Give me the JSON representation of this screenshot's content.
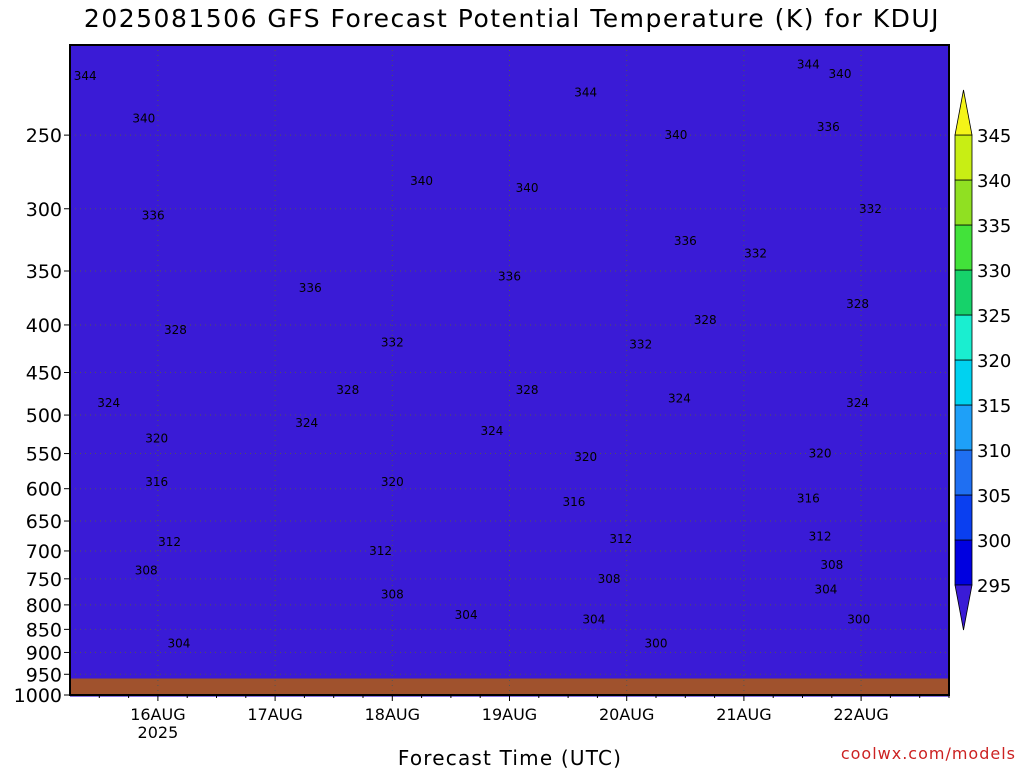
{
  "title": "2025081506 GFS Forecast Potential Temperature (K) for KDUJ",
  "credit": "coolwx.com/models",
  "chart_data": {
    "type": "heatmap",
    "title": "2025081506 GFS Forecast Potential Temperature (K) for KDUJ",
    "xlabel": "Forecast Time (UTC)",
    "ylabel": "",
    "x_ticks": [
      "16AUG",
      "17AUG",
      "18AUG",
      "19AUG",
      "20AUG",
      "21AUG",
      "22AUG"
    ],
    "x_tick_sublabel": {
      "16AUG": "2025"
    },
    "x_range_days": [
      15.25,
      22.75
    ],
    "y_ticks": [
      250,
      300,
      350,
      400,
      450,
      500,
      550,
      600,
      650,
      700,
      750,
      800,
      850,
      900,
      950,
      1000
    ],
    "y_range_hpa": [
      200,
      1000
    ],
    "y_scale": "log",
    "y_reversed": true,
    "ground_level_hpa": 960,
    "grid": "dotted",
    "colorbar": {
      "levels": [
        295,
        300,
        305,
        310,
        315,
        320,
        325,
        330,
        335,
        340,
        345
      ],
      "colors": [
        "#3a1bd6",
        "#0000e0",
        "#0a3ff0",
        "#1f6ff2",
        "#1ea0f8",
        "#00d2f0",
        "#1aeed0",
        "#16d26a",
        "#42e23a",
        "#90e022",
        "#c8ee14",
        "#f4f418"
      ],
      "extend": "both"
    },
    "contour_labels": [
      {
        "day": 15.38,
        "p": 216,
        "v": 344
      },
      {
        "day": 15.88,
        "p": 240,
        "v": 340
      },
      {
        "day": 15.96,
        "p": 305,
        "v": 336
      },
      {
        "day": 16.15,
        "p": 405,
        "v": 328
      },
      {
        "day": 15.58,
        "p": 485,
        "v": 324
      },
      {
        "day": 15.99,
        "p": 530,
        "v": 320
      },
      {
        "day": 15.99,
        "p": 590,
        "v": 316
      },
      {
        "day": 16.1,
        "p": 685,
        "v": 312
      },
      {
        "day": 15.9,
        "p": 735,
        "v": 308
      },
      {
        "day": 16.18,
        "p": 880,
        "v": 304
      },
      {
        "day": 18.25,
        "p": 280,
        "v": 340
      },
      {
        "day": 17.3,
        "p": 365,
        "v": 336
      },
      {
        "day": 18.0,
        "p": 418,
        "v": 332
      },
      {
        "day": 17.62,
        "p": 470,
        "v": 328
      },
      {
        "day": 17.27,
        "p": 510,
        "v": 324
      },
      {
        "day": 18.0,
        "p": 590,
        "v": 320
      },
      {
        "day": 17.9,
        "p": 700,
        "v": 312
      },
      {
        "day": 18.0,
        "p": 780,
        "v": 308
      },
      {
        "day": 18.63,
        "p": 820,
        "v": 304
      },
      {
        "day": 19.15,
        "p": 285,
        "v": 340
      },
      {
        "day": 19.0,
        "p": 355,
        "v": 336
      },
      {
        "day": 19.15,
        "p": 470,
        "v": 328
      },
      {
        "day": 18.85,
        "p": 520,
        "v": 324
      },
      {
        "day": 19.65,
        "p": 555,
        "v": 320
      },
      {
        "day": 19.55,
        "p": 620,
        "v": 316
      },
      {
        "day": 19.95,
        "p": 680,
        "v": 312
      },
      {
        "day": 19.85,
        "p": 750,
        "v": 308
      },
      {
        "day": 19.72,
        "p": 830,
        "v": 304
      },
      {
        "day": 20.25,
        "p": 880,
        "v": 300
      },
      {
        "day": 19.65,
        "p": 225,
        "v": 344
      },
      {
        "day": 20.42,
        "p": 250,
        "v": 340
      },
      {
        "day": 20.5,
        "p": 325,
        "v": 336
      },
      {
        "day": 21.1,
        "p": 335,
        "v": 332
      },
      {
        "day": 20.67,
        "p": 395,
        "v": 328
      },
      {
        "day": 20.12,
        "p": 420,
        "v": 332
      },
      {
        "day": 20.45,
        "p": 480,
        "v": 324
      },
      {
        "day": 21.55,
        "p": 210,
        "v": 344
      },
      {
        "day": 21.82,
        "p": 215,
        "v": 340
      },
      {
        "day": 21.72,
        "p": 245,
        "v": 336
      },
      {
        "day": 22.08,
        "p": 300,
        "v": 332
      },
      {
        "day": 21.97,
        "p": 380,
        "v": 328
      },
      {
        "day": 21.97,
        "p": 485,
        "v": 324
      },
      {
        "day": 21.65,
        "p": 550,
        "v": 320
      },
      {
        "day": 21.55,
        "p": 615,
        "v": 316
      },
      {
        "day": 21.65,
        "p": 675,
        "v": 312
      },
      {
        "day": 21.75,
        "p": 725,
        "v": 308
      },
      {
        "day": 21.7,
        "p": 770,
        "v": 304
      },
      {
        "day": 21.98,
        "p": 830,
        "v": 300
      }
    ]
  }
}
